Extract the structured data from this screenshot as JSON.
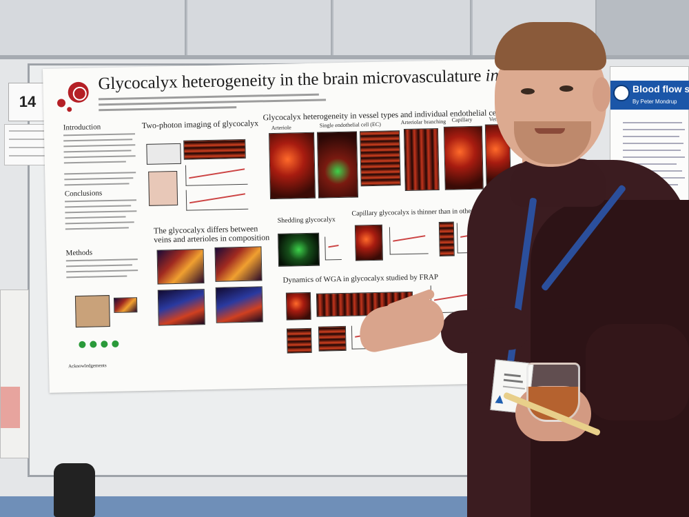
{
  "poster": {
    "number": "14",
    "title_main": "Glycocalyx heterogeneity in the brain microvasculature ",
    "title_italic": "in vivo",
    "sections": {
      "intro": "Introduction",
      "two_photon": "Two-photon imaging of glycocalyx",
      "heterogeneity": "Glycocalyx heterogeneity in vessel types and individual endothelial cells",
      "conclusions": "Conclusions",
      "methods": "Methods",
      "veins": "The glycocalyx differs between veins and arterioles in composition",
      "shedding": "Shedding glycocalyx",
      "capillary": "Capillary glycocalyx is thinner than in other vessels",
      "frap": "Dynamics of WGA in glycocalyx studied by FRAP",
      "acknowledgements": "Acknowledgements"
    },
    "panel_labels": {
      "arteriole": "Arteriole",
      "single_ec": "Single endothelial cell (EC)",
      "arteriolar_branching": "Arteriolar branching",
      "capillary": "Capillary",
      "venule": "Venule"
    }
  },
  "right_poster": {
    "title": "Blood flow s",
    "author": "By Peter Mondrup"
  },
  "colors": {
    "poster_red": "#b52026",
    "right_banner": "#1b56a8",
    "sweater": "#3b1c20",
    "lanyard": "#2b4f9c"
  }
}
